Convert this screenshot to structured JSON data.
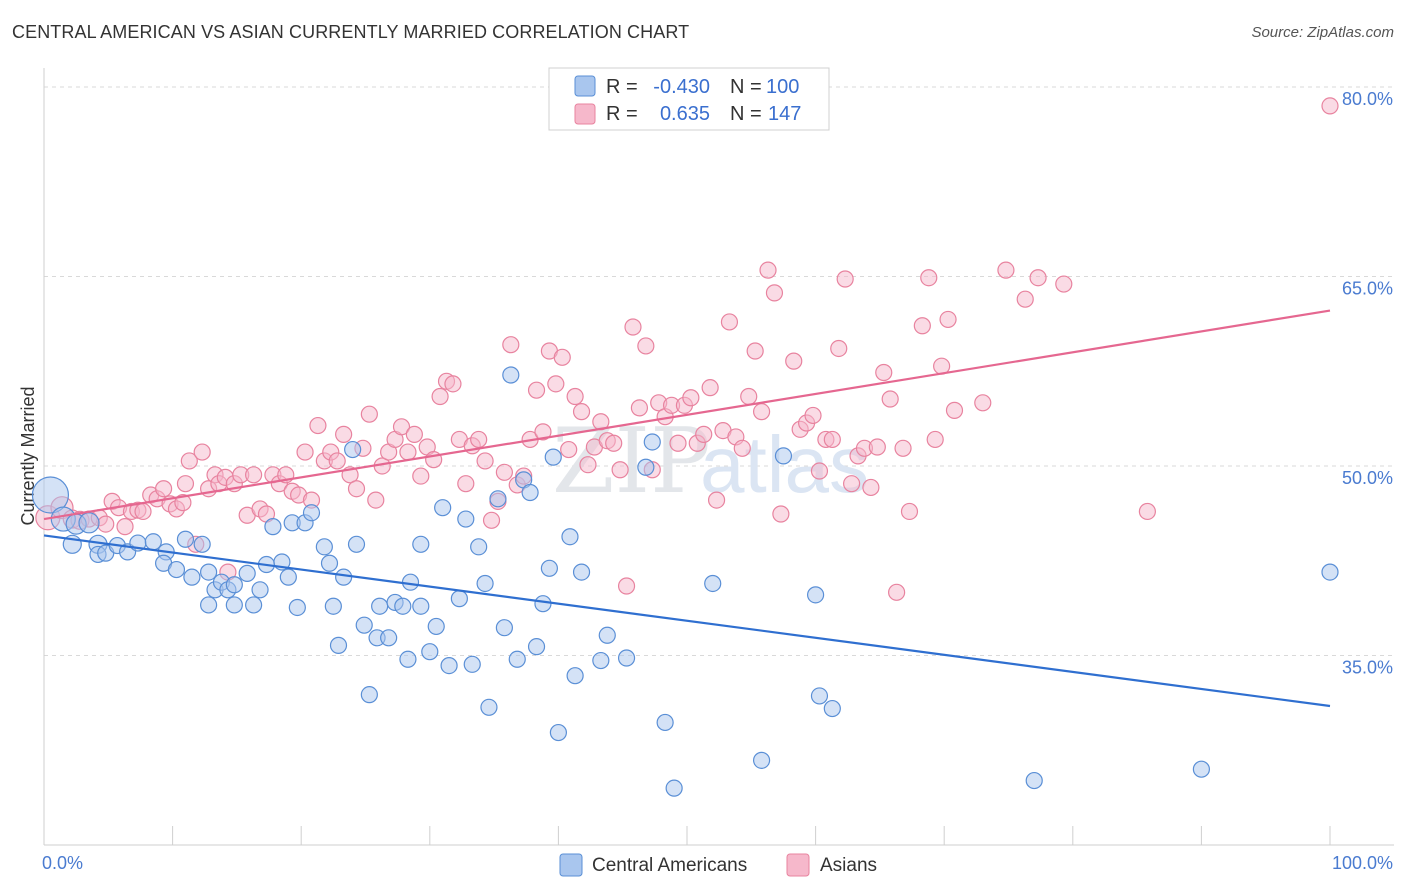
{
  "title": "CENTRAL AMERICAN VS ASIAN CURRENTLY MARRIED CORRELATION CHART",
  "source": "Source: ZipAtlas.com",
  "watermark": {
    "zip": "ZIP",
    "atlas": "atlas"
  },
  "colors": {
    "blue_fill": "#a9c6ee",
    "blue_stroke": "#5a8fd6",
    "blue_line": "#2f6fd0",
    "pink_fill": "#f6b8cb",
    "pink_stroke": "#e8839f",
    "pink_line": "#e56790",
    "grid": "#d9d9d9",
    "tick_text": "#4a7bd0"
  },
  "legend": {
    "rows": [
      {
        "r_label": "R =",
        "r_value": "-0.430",
        "n_label": "N =",
        "n_value": "100"
      },
      {
        "r_label": "R =",
        "r_value": "0.635",
        "n_label": "N =",
        "n_value": "147"
      }
    ]
  },
  "bottom_legend": [
    "Central Americans",
    "Asians"
  ],
  "chart_data": {
    "type": "scatter",
    "title": "CENTRAL AMERICAN VS ASIAN CURRENTLY MARRIED CORRELATION CHART",
    "xlabel": "",
    "ylabel": "Currently Married",
    "xlim": [
      0,
      100
    ],
    "ylim": [
      20,
      81.5
    ],
    "x_tick_labels": [
      "0.0%",
      "100.0%"
    ],
    "y_ticks": [
      35,
      50,
      65,
      80
    ],
    "y_tick_labels": [
      "35.0%",
      "50.0%",
      "65.0%",
      "80.0%"
    ],
    "grid": true,
    "series": [
      {
        "name": "Central Americans",
        "r": -0.43,
        "n": 100,
        "trend": {
          "x": [
            0,
            100
          ],
          "y": [
            44.5,
            31.0
          ]
        },
        "points": [
          [
            0.5,
            47.7,
            18
          ],
          [
            1.5,
            45.8,
            12
          ],
          [
            2.5,
            45.4,
            10
          ],
          [
            3.5,
            45.5,
            10
          ],
          [
            2.2,
            43.8,
            9
          ],
          [
            4.2,
            43.8,
            9
          ],
          [
            4.2,
            43.0,
            8
          ],
          [
            4.8,
            43.1,
            8
          ],
          [
            5.7,
            43.7,
            8
          ],
          [
            6.5,
            43.2,
            8
          ],
          [
            7.3,
            43.9,
            8
          ],
          [
            8.5,
            44.0,
            8
          ],
          [
            9.5,
            43.2,
            8
          ],
          [
            9.3,
            42.3,
            8
          ],
          [
            10.3,
            41.8,
            8
          ],
          [
            11.0,
            44.2,
            8
          ],
          [
            11.5,
            41.2,
            8
          ],
          [
            12.3,
            43.8,
            8
          ],
          [
            12.8,
            41.6,
            8
          ],
          [
            12.8,
            39.0,
            8
          ],
          [
            13.3,
            40.2,
            8
          ],
          [
            13.8,
            40.8,
            8
          ],
          [
            14.3,
            40.2,
            8
          ],
          [
            14.8,
            39.0,
            8
          ],
          [
            14.8,
            40.6,
            8
          ],
          [
            15.8,
            41.5,
            8
          ],
          [
            16.3,
            39.0,
            8
          ],
          [
            16.8,
            40.2,
            8
          ],
          [
            17.3,
            42.2,
            8
          ],
          [
            17.8,
            45.2,
            8
          ],
          [
            18.5,
            42.4,
            8
          ],
          [
            19.0,
            41.2,
            8
          ],
          [
            19.3,
            45.5,
            8
          ],
          [
            19.7,
            38.8,
            8
          ],
          [
            20.3,
            45.5,
            8
          ],
          [
            20.8,
            46.3,
            8
          ],
          [
            21.8,
            43.6,
            8
          ],
          [
            22.2,
            42.3,
            8
          ],
          [
            22.5,
            38.9,
            8
          ],
          [
            22.9,
            35.8,
            8
          ],
          [
            23.3,
            41.2,
            8
          ],
          [
            24.0,
            51.3,
            8
          ],
          [
            24.3,
            43.8,
            8
          ],
          [
            24.9,
            37.4,
            8
          ],
          [
            25.3,
            31.9,
            8
          ],
          [
            25.9,
            36.4,
            8
          ],
          [
            26.1,
            38.9,
            8
          ],
          [
            26.8,
            36.4,
            8
          ],
          [
            27.3,
            39.2,
            8
          ],
          [
            27.9,
            38.9,
            8
          ],
          [
            28.3,
            34.7,
            8
          ],
          [
            28.5,
            40.8,
            8
          ],
          [
            29.3,
            38.9,
            8
          ],
          [
            29.3,
            43.8,
            8
          ],
          [
            30.0,
            35.3,
            8
          ],
          [
            30.5,
            37.3,
            8
          ],
          [
            31.0,
            46.7,
            8
          ],
          [
            31.5,
            34.2,
            8
          ],
          [
            32.3,
            39.5,
            8
          ],
          [
            32.8,
            45.8,
            8
          ],
          [
            33.3,
            34.3,
            8
          ],
          [
            33.8,
            43.6,
            8
          ],
          [
            34.3,
            40.7,
            8
          ],
          [
            34.6,
            30.9,
            8
          ],
          [
            35.3,
            47.4,
            8
          ],
          [
            35.8,
            37.2,
            8
          ],
          [
            36.3,
            57.2,
            8
          ],
          [
            36.8,
            34.7,
            8
          ],
          [
            37.3,
            48.9,
            8
          ],
          [
            37.8,
            47.9,
            8
          ],
          [
            38.3,
            35.7,
            8
          ],
          [
            38.8,
            39.1,
            8
          ],
          [
            39.3,
            41.9,
            8
          ],
          [
            39.6,
            50.7,
            8
          ],
          [
            40.0,
            28.9,
            8
          ],
          [
            40.9,
            44.4,
            8
          ],
          [
            41.3,
            33.4,
            8
          ],
          [
            41.8,
            41.6,
            8
          ],
          [
            43.3,
            34.6,
            8
          ],
          [
            43.8,
            36.6,
            8
          ],
          [
            45.3,
            34.8,
            8
          ],
          [
            46.8,
            49.9,
            8
          ],
          [
            47.3,
            51.9,
            8
          ],
          [
            48.3,
            29.7,
            8
          ],
          [
            49.0,
            24.5,
            8
          ],
          [
            52.0,
            40.7,
            8
          ],
          [
            55.8,
            26.7,
            8
          ],
          [
            57.5,
            50.8,
            8
          ],
          [
            60.0,
            39.8,
            8
          ],
          [
            60.3,
            31.8,
            8
          ],
          [
            61.3,
            30.8,
            8
          ],
          [
            77.0,
            25.1,
            8
          ],
          [
            90.0,
            26.0,
            8
          ],
          [
            100.0,
            41.6,
            8
          ]
        ]
      },
      {
        "name": "Asians",
        "r": 0.635,
        "n": 147,
        "trend": {
          "x": [
            0,
            100
          ],
          "y": [
            45.8,
            62.3
          ]
        },
        "points": [
          [
            0.3,
            45.9,
            12
          ],
          [
            1.4,
            46.7,
            11
          ],
          [
            2.2,
            45.8,
            9
          ],
          [
            2.8,
            45.7,
            9
          ],
          [
            3.5,
            45.8,
            8
          ],
          [
            4.3,
            45.9,
            8
          ],
          [
            4.8,
            45.4,
            8
          ],
          [
            5.3,
            47.2,
            8
          ],
          [
            5.8,
            46.7,
            8
          ],
          [
            6.3,
            45.2,
            8
          ],
          [
            6.8,
            46.4,
            8
          ],
          [
            7.3,
            46.5,
            8
          ],
          [
            7.7,
            46.4,
            8
          ],
          [
            8.3,
            47.7,
            8
          ],
          [
            8.8,
            47.4,
            8
          ],
          [
            9.3,
            48.2,
            8
          ],
          [
            9.8,
            47.0,
            8
          ],
          [
            10.3,
            46.6,
            8
          ],
          [
            10.8,
            47.1,
            8
          ],
          [
            11.0,
            48.6,
            8
          ],
          [
            11.3,
            50.4,
            8
          ],
          [
            11.8,
            43.8,
            8
          ],
          [
            12.3,
            51.1,
            8
          ],
          [
            12.8,
            48.2,
            8
          ],
          [
            13.3,
            49.3,
            8
          ],
          [
            13.6,
            48.6,
            8
          ],
          [
            14.1,
            49.1,
            8
          ],
          [
            14.3,
            41.6,
            8
          ],
          [
            14.8,
            48.6,
            8
          ],
          [
            15.3,
            49.3,
            8
          ],
          [
            15.8,
            46.1,
            8
          ],
          [
            16.3,
            49.3,
            8
          ],
          [
            16.8,
            46.6,
            8
          ],
          [
            17.3,
            46.2,
            8
          ],
          [
            17.8,
            49.3,
            8
          ],
          [
            18.3,
            48.6,
            8
          ],
          [
            18.8,
            49.3,
            8
          ],
          [
            19.3,
            48.0,
            8
          ],
          [
            19.8,
            47.7,
            8
          ],
          [
            20.3,
            51.1,
            8
          ],
          [
            20.8,
            47.3,
            8
          ],
          [
            21.3,
            53.2,
            8
          ],
          [
            21.8,
            50.4,
            8
          ],
          [
            22.3,
            51.1,
            8
          ],
          [
            22.8,
            50.4,
            8
          ],
          [
            23.3,
            52.5,
            8
          ],
          [
            23.8,
            49.3,
            8
          ],
          [
            24.3,
            48.2,
            8
          ],
          [
            24.8,
            51.4,
            8
          ],
          [
            25.3,
            54.1,
            8
          ],
          [
            25.8,
            47.3,
            8
          ],
          [
            26.3,
            50.0,
            8
          ],
          [
            26.8,
            51.1,
            8
          ],
          [
            27.3,
            52.1,
            8
          ],
          [
            27.8,
            53.1,
            8
          ],
          [
            28.3,
            51.1,
            8
          ],
          [
            28.8,
            52.5,
            8
          ],
          [
            29.3,
            49.2,
            8
          ],
          [
            29.8,
            51.5,
            8
          ],
          [
            30.3,
            50.5,
            8
          ],
          [
            30.8,
            55.5,
            8
          ],
          [
            31.3,
            56.7,
            8
          ],
          [
            31.8,
            56.5,
            8
          ],
          [
            32.3,
            52.1,
            8
          ],
          [
            32.8,
            48.6,
            8
          ],
          [
            33.3,
            51.6,
            8
          ],
          [
            33.8,
            52.1,
            8
          ],
          [
            34.3,
            50.4,
            8
          ],
          [
            34.8,
            45.7,
            8
          ],
          [
            35.3,
            47.2,
            8
          ],
          [
            35.8,
            49.5,
            8
          ],
          [
            36.3,
            59.6,
            8
          ],
          [
            36.8,
            48.5,
            8
          ],
          [
            37.3,
            49.2,
            8
          ],
          [
            37.8,
            52.1,
            8
          ],
          [
            38.3,
            56.0,
            8
          ],
          [
            38.8,
            52.7,
            8
          ],
          [
            39.3,
            59.1,
            8
          ],
          [
            39.8,
            56.5,
            8
          ],
          [
            40.3,
            58.6,
            8
          ],
          [
            40.8,
            51.3,
            8
          ],
          [
            41.3,
            55.5,
            8
          ],
          [
            41.8,
            54.3,
            8
          ],
          [
            42.3,
            50.1,
            8
          ],
          [
            42.8,
            51.5,
            8
          ],
          [
            43.3,
            53.5,
            8
          ],
          [
            43.8,
            52.0,
            8
          ],
          [
            44.3,
            51.8,
            8
          ],
          [
            44.8,
            49.7,
            8
          ],
          [
            45.3,
            40.5,
            8
          ],
          [
            45.8,
            61.0,
            8
          ],
          [
            46.3,
            54.6,
            8
          ],
          [
            46.8,
            59.5,
            8
          ],
          [
            47.3,
            49.7,
            8
          ],
          [
            47.8,
            55.0,
            8
          ],
          [
            48.3,
            53.9,
            8
          ],
          [
            48.8,
            54.8,
            8
          ],
          [
            49.3,
            51.8,
            8
          ],
          [
            49.8,
            54.8,
            8
          ],
          [
            50.3,
            55.4,
            8
          ],
          [
            50.8,
            51.8,
            8
          ],
          [
            51.3,
            52.5,
            8
          ],
          [
            51.8,
            56.2,
            8
          ],
          [
            52.3,
            47.3,
            8
          ],
          [
            52.8,
            52.8,
            8
          ],
          [
            53.3,
            61.4,
            8
          ],
          [
            53.8,
            52.3,
            8
          ],
          [
            54.3,
            51.4,
            8
          ],
          [
            54.8,
            55.5,
            8
          ],
          [
            55.3,
            59.1,
            8
          ],
          [
            55.8,
            54.3,
            8
          ],
          [
            56.3,
            65.5,
            8
          ],
          [
            56.8,
            63.7,
            8
          ],
          [
            57.3,
            46.2,
            8
          ],
          [
            58.3,
            58.3,
            8
          ],
          [
            58.8,
            52.9,
            8
          ],
          [
            59.3,
            53.4,
            8
          ],
          [
            59.8,
            54.0,
            8
          ],
          [
            60.3,
            49.6,
            8
          ],
          [
            60.8,
            52.1,
            8
          ],
          [
            61.3,
            52.1,
            8
          ],
          [
            61.8,
            59.3,
            8
          ],
          [
            62.3,
            64.8,
            8
          ],
          [
            62.8,
            48.6,
            8
          ],
          [
            63.3,
            50.8,
            8
          ],
          [
            63.8,
            51.4,
            8
          ],
          [
            64.3,
            48.3,
            8
          ],
          [
            64.8,
            51.5,
            8
          ],
          [
            65.3,
            57.4,
            8
          ],
          [
            65.8,
            55.3,
            8
          ],
          [
            66.3,
            40.0,
            8
          ],
          [
            66.8,
            51.4,
            8
          ],
          [
            67.3,
            46.4,
            8
          ],
          [
            68.3,
            61.1,
            8
          ],
          [
            68.8,
            64.9,
            8
          ],
          [
            69.3,
            52.1,
            8
          ],
          [
            69.8,
            57.9,
            8
          ],
          [
            70.3,
            61.6,
            8
          ],
          [
            70.8,
            54.4,
            8
          ],
          [
            73.0,
            55.0,
            8
          ],
          [
            74.8,
            65.5,
            8
          ],
          [
            76.3,
            63.2,
            8
          ],
          [
            77.3,
            64.9,
            8
          ],
          [
            79.3,
            64.4,
            8
          ],
          [
            85.8,
            46.4,
            8
          ],
          [
            100.0,
            78.5,
            8
          ]
        ]
      }
    ]
  }
}
